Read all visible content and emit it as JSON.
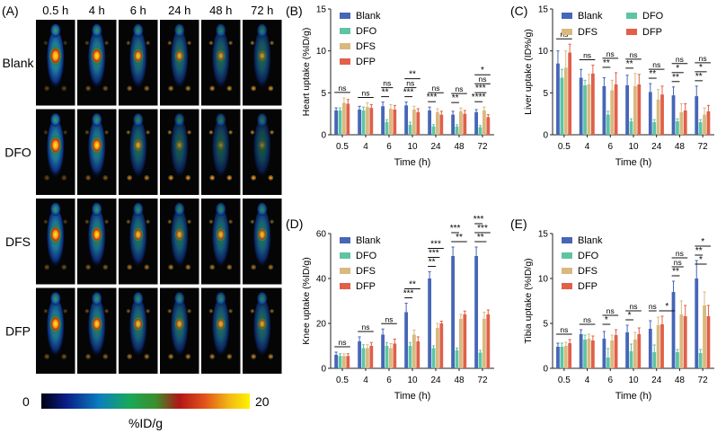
{
  "colors": {
    "Blank": "#4666b7",
    "DFO": "#5ec4a3",
    "DFS": "#d9b97e",
    "DFP": "#e0604a",
    "axis": "#222222",
    "petBg": "#050505"
  },
  "petPanel": {
    "label": "(A)",
    "times": [
      "0.5 h",
      "4 h",
      "6 h",
      "24 h",
      "48 h",
      "72 h"
    ],
    "rows": [
      "Blank",
      "DFO",
      "DFS",
      "DFP"
    ],
    "colorbar": {
      "min": "0",
      "max": "20",
      "unit": "%ID/g"
    },
    "intensity": [
      [
        1.0,
        0.8,
        0.6,
        0.45,
        0.35,
        0.3
      ],
      [
        0.95,
        0.75,
        0.4,
        0.2,
        0.12,
        0.1
      ],
      [
        0.9,
        0.75,
        0.55,
        0.45,
        0.5,
        0.55
      ],
      [
        0.85,
        0.7,
        0.55,
        0.45,
        0.45,
        0.4
      ]
    ]
  },
  "chart_data": [
    {
      "label": "(B)",
      "type": "bar",
      "ylabel": "Heart uptake (%ID/g)",
      "xlabel": "Time (h)",
      "categories": [
        "0.5",
        "4",
        "6",
        "10",
        "24",
        "48",
        "72"
      ],
      "ylim": [
        0,
        15
      ],
      "yticks": [
        0,
        5,
        10,
        15
      ],
      "legend": "top-left",
      "series": [
        {
          "name": "Blank",
          "values": [
            2.9,
            3.0,
            3.4,
            3.5,
            2.9,
            2.4,
            2.7
          ],
          "errors": [
            0.3,
            0.4,
            0.5,
            0.4,
            0.4,
            0.4,
            0.3
          ]
        },
        {
          "name": "DFO",
          "values": [
            2.9,
            2.9,
            1.5,
            1.2,
            1.0,
            1.0,
            0.9
          ],
          "errors": [
            0.3,
            0.4,
            0.3,
            0.3,
            0.2,
            0.2,
            0.2
          ]
        },
        {
          "name": "DFS",
          "values": [
            3.8,
            3.3,
            3.1,
            3.0,
            2.7,
            2.8,
            2.9
          ],
          "errors": [
            0.6,
            0.5,
            0.5,
            0.4,
            0.4,
            0.4,
            0.4
          ]
        },
        {
          "name": "DFP",
          "values": [
            3.7,
            3.2,
            3.0,
            2.7,
            2.4,
            2.5,
            2.1
          ],
          "errors": [
            0.5,
            0.4,
            0.5,
            0.4,
            0.4,
            0.4,
            0.3
          ]
        }
      ],
      "annotations": [
        {
          "cat": 0,
          "from": 0,
          "to": 3,
          "level": 0,
          "text": "ns"
        },
        {
          "cat": 1,
          "from": 0,
          "to": 3,
          "level": 0,
          "text": "ns"
        },
        {
          "cat": 2,
          "from": 0,
          "to": 1,
          "level": 0,
          "text": "**"
        },
        {
          "cat": 2,
          "from": 0,
          "to": 2,
          "level": 1,
          "text": "ns"
        },
        {
          "cat": 3,
          "from": 0,
          "to": 1,
          "level": 0,
          "text": "***"
        },
        {
          "cat": 3,
          "from": 0,
          "to": 2,
          "level": 1,
          "text": "ns"
        },
        {
          "cat": 3,
          "from": 0,
          "to": 3,
          "level": 2,
          "text": "**"
        },
        {
          "cat": 4,
          "from": 0,
          "to": 1,
          "level": 0,
          "text": "***"
        },
        {
          "cat": 4,
          "from": 0,
          "to": 3,
          "level": 1,
          "text": "ns"
        },
        {
          "cat": 5,
          "from": 0,
          "to": 1,
          "level": 0,
          "text": "**"
        },
        {
          "cat": 5,
          "from": 0,
          "to": 3,
          "level": 1,
          "text": "ns"
        },
        {
          "cat": 6,
          "from": 0,
          "to": 1,
          "level": 0,
          "text": "****"
        },
        {
          "cat": 6,
          "from": 0,
          "to": 2,
          "level": 1,
          "text": "***"
        },
        {
          "cat": 6,
          "from": 0,
          "to": 3,
          "level": 2,
          "text": "ns"
        },
        {
          "cat": 6,
          "from": 0,
          "to": 3,
          "level": 3,
          "text": "*"
        }
      ]
    },
    {
      "label": "(C)",
      "type": "bar",
      "ylabel": "Liver uptake (ID%/g)",
      "xlabel": "Time (h)",
      "categories": [
        "0.5",
        "4",
        "6",
        "10",
        "24",
        "48",
        "72"
      ],
      "ylim": [
        0,
        15
      ],
      "yticks": [
        0,
        5,
        10,
        15
      ],
      "legend": "top",
      "series": [
        {
          "name": "Blank",
          "values": [
            8.5,
            6.8,
            5.8,
            5.9,
            5.1,
            4.7,
            4.6
          ],
          "errors": [
            1.5,
            1.0,
            1.0,
            1.2,
            1.0,
            1.0,
            1.2
          ]
        },
        {
          "name": "DFO",
          "values": [
            6.8,
            5.9,
            2.4,
            1.6,
            1.5,
            1.6,
            1.5
          ],
          "errors": [
            1.0,
            0.6,
            0.4,
            0.3,
            0.3,
            0.3,
            0.3
          ]
        },
        {
          "name": "DFS",
          "values": [
            8.0,
            6.0,
            5.3,
            5.8,
            4.2,
            2.7,
            2.4
          ],
          "errors": [
            2.0,
            1.2,
            1.2,
            1.5,
            1.2,
            1.0,
            0.8
          ]
        },
        {
          "name": "DFP",
          "values": [
            9.8,
            7.3,
            6.0,
            6.0,
            4.8,
            2.9,
            2.8
          ],
          "errors": [
            1.0,
            1.0,
            1.4,
            1.2,
            1.0,
            0.8,
            0.7
          ]
        }
      ],
      "annotations": [
        {
          "cat": 0,
          "from": 0,
          "to": 3,
          "level": 0,
          "text": "ns"
        },
        {
          "cat": 1,
          "from": 0,
          "to": 3,
          "level": 0,
          "text": "ns"
        },
        {
          "cat": 2,
          "from": 0,
          "to": 1,
          "level": 0,
          "text": "**"
        },
        {
          "cat": 2,
          "from": 0,
          "to": 3,
          "level": 1,
          "text": "ns"
        },
        {
          "cat": 3,
          "from": 0,
          "to": 1,
          "level": 0,
          "text": "**"
        },
        {
          "cat": 3,
          "from": 0,
          "to": 3,
          "level": 1,
          "text": "ns"
        },
        {
          "cat": 4,
          "from": 0,
          "to": 1,
          "level": 0,
          "text": "**"
        },
        {
          "cat": 4,
          "from": 0,
          "to": 3,
          "level": 1,
          "text": "ns"
        },
        {
          "cat": 5,
          "from": 0,
          "to": 1,
          "level": 0,
          "text": "**"
        },
        {
          "cat": 5,
          "from": 0,
          "to": 2,
          "level": 1,
          "text": "*"
        },
        {
          "cat": 5,
          "from": 0,
          "to": 3,
          "level": 2,
          "text": "ns"
        },
        {
          "cat": 6,
          "from": 0,
          "to": 1,
          "level": 0,
          "text": "**"
        },
        {
          "cat": 6,
          "from": 0,
          "to": 2,
          "level": 1,
          "text": "*"
        },
        {
          "cat": 6,
          "from": 0,
          "to": 3,
          "level": 2,
          "text": "ns"
        }
      ]
    },
    {
      "label": "(D)",
      "type": "bar",
      "ylabel": "Knee uptake (%ID/g)",
      "xlabel": "Time (h)",
      "categories": [
        "0.5",
        "4",
        "6",
        "10",
        "24",
        "48",
        "72"
      ],
      "ylim": [
        0,
        60
      ],
      "yticks": [
        0,
        20,
        40,
        60
      ],
      "legend": "top-left",
      "series": [
        {
          "name": "Blank",
          "values": [
            6,
            12,
            15,
            25,
            40,
            50,
            50
          ],
          "errors": [
            1.2,
            2,
            2.5,
            4,
            3,
            4,
            4
          ]
        },
        {
          "name": "DFO",
          "values": [
            5.5,
            9,
            10,
            10,
            9,
            8,
            7
          ],
          "errors": [
            1,
            1.5,
            1.5,
            1.5,
            1,
            1,
            1
          ]
        },
        {
          "name": "DFS",
          "values": [
            5.5,
            9,
            9,
            15,
            18,
            22,
            22
          ],
          "errors": [
            1,
            1.5,
            2,
            2,
            2,
            2,
            3
          ]
        },
        {
          "name": "DFP",
          "values": [
            5.5,
            10,
            11,
            12,
            20,
            24,
            24
          ],
          "errors": [
            1,
            1.5,
            2,
            2,
            1,
            1.5,
            2
          ]
        }
      ],
      "annotations": [
        {
          "cat": 0,
          "from": 0,
          "to": 3,
          "level": 0,
          "text": "ns"
        },
        {
          "cat": 1,
          "from": 0,
          "to": 3,
          "level": 0,
          "text": "ns"
        },
        {
          "cat": 2,
          "from": 0,
          "to": 3,
          "level": 0,
          "text": "ns"
        },
        {
          "cat": 3,
          "from": 0,
          "to": 1,
          "level": 0,
          "text": "***"
        },
        {
          "cat": 3,
          "from": 0,
          "to": 3,
          "level": 1,
          "text": "**"
        },
        {
          "cat": 4,
          "from": 0,
          "to": 1,
          "level": 0,
          "text": "**"
        },
        {
          "cat": 4,
          "from": 0,
          "to": 2,
          "level": 1,
          "text": "***"
        },
        {
          "cat": 4,
          "from": 0,
          "to": 3,
          "level": 2,
          "text": "***"
        },
        {
          "cat": 5,
          "from": 0,
          "to": 3,
          "level": 0,
          "text": "**"
        },
        {
          "cat": 5,
          "from": 0,
          "to": 1,
          "level": 1,
          "text": "***"
        },
        {
          "cat": 6,
          "from": 0,
          "to": 2,
          "level": 0,
          "text": "**"
        },
        {
          "cat": 6,
          "from": 0,
          "to": 3,
          "level": 1,
          "text": "***"
        },
        {
          "cat": 6,
          "from": 0,
          "to": 1,
          "level": 2,
          "text": "***"
        }
      ]
    },
    {
      "label": "(E)",
      "type": "bar",
      "ylabel": "Tibia uptake (%ID/g)",
      "xlabel": "Time (h)",
      "categories": [
        "0.5",
        "4",
        "6",
        "10",
        "24",
        "48",
        "72"
      ],
      "ylim": [
        0,
        15
      ],
      "yticks": [
        0,
        5,
        10,
        15
      ],
      "legend": "top-left",
      "series": [
        {
          "name": "Blank",
          "values": [
            2.4,
            3.8,
            3.3,
            4.0,
            4.4,
            8.5,
            10.0
          ],
          "errors": [
            0.4,
            0.5,
            0.8,
            0.8,
            0.9,
            1.2,
            2.0
          ]
        },
        {
          "name": "DFO",
          "values": [
            2.4,
            3.2,
            1.2,
            1.9,
            1.8,
            1.8,
            1.7
          ],
          "errors": [
            0.4,
            0.5,
            1.0,
            0.8,
            0.8,
            0.3,
            0.4
          ]
        },
        {
          "name": "DFS",
          "values": [
            2.5,
            3.3,
            3.1,
            3.2,
            4.8,
            6.0,
            7.0
          ],
          "errors": [
            0.4,
            0.5,
            0.6,
            0.8,
            0.9,
            1.5,
            1.5
          ]
        },
        {
          "name": "DFP",
          "values": [
            2.8,
            3.1,
            3.7,
            3.8,
            4.9,
            5.8,
            5.8
          ],
          "errors": [
            0.4,
            0.5,
            0.6,
            0.7,
            0.9,
            1.2,
            1.2
          ]
        }
      ],
      "annotations": [
        {
          "cat": 0,
          "from": 0,
          "to": 3,
          "level": 0,
          "text": "ns"
        },
        {
          "cat": 1,
          "from": 0,
          "to": 3,
          "level": 0,
          "text": "ns"
        },
        {
          "cat": 2,
          "from": 0,
          "to": 1,
          "level": 0,
          "text": "*"
        },
        {
          "cat": 2,
          "from": 0,
          "to": 3,
          "level": 1,
          "text": "ns"
        },
        {
          "cat": 3,
          "from": 0,
          "to": 1,
          "level": 0,
          "text": "*"
        },
        {
          "cat": 3,
          "from": 0,
          "to": 3,
          "level": 1,
          "text": "ns"
        },
        {
          "cat": 4,
          "from": 0,
          "to": 1,
          "level": 0,
          "text": "ns"
        },
        {
          "cat": 4,
          "from": 0,
          "to": 3,
          "level": 0,
          "text": "*",
          "shift": 1
        },
        {
          "cat": 5,
          "from": 0,
          "to": 1,
          "level": 0,
          "text": "**"
        },
        {
          "cat": 5,
          "from": 0,
          "to": 2,
          "level": 1,
          "text": "ns"
        },
        {
          "cat": 5,
          "from": 0,
          "to": 3,
          "level": 2,
          "text": "ns"
        },
        {
          "cat": 6,
          "from": 0,
          "to": 1,
          "level": 0,
          "text": "**"
        },
        {
          "cat": 6,
          "from": 0,
          "to": 3,
          "level": 1,
          "text": "*"
        },
        {
          "cat": 6,
          "from": 0,
          "to": 2,
          "level": -1,
          "text": "*"
        }
      ]
    }
  ]
}
